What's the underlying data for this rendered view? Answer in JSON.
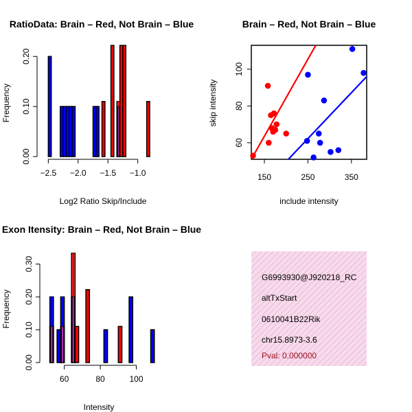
{
  "colors": {
    "red": "#ff0000",
    "blue": "#0000ff",
    "overlap": "#b02ab0",
    "info_bg": "#f7dbec",
    "info_hatch": "#eab8d6",
    "pval": "#9b1020"
  },
  "info_panel": {
    "lines": [
      "G6993930@J920218_RC",
      "altTxStart",
      "0610041B22Rik",
      "chr15.8973-3.6"
    ],
    "pval": "Pval: 0.000000"
  },
  "chart_data": [
    {
      "id": "ratio-hist",
      "type": "bar",
      "title": "RatioData: Brain – Red, Not Brain – Blue",
      "xlabel": "Log2 Ratio Skip/Include",
      "ylabel": "Frequency",
      "xlim": [
        -2.55,
        -0.8
      ],
      "ylim": [
        0,
        0.225
      ],
      "xticks": [
        -2.5,
        -2.0,
        -1.5,
        -1.0
      ],
      "xtick_labels": [
        "−2.5",
        "−2.0",
        "−1.5",
        "−1.0"
      ],
      "yticks": [
        0.0,
        0.1,
        0.2
      ],
      "ytick_labels": [
        "0.00",
        "0.10",
        "0.20"
      ],
      "series": [
        {
          "name": "Not Brain",
          "color": "blue",
          "bins": [
            [
              -2.5,
              0.2
            ],
            [
              -2.3,
              0.1
            ],
            [
              -2.25,
              0.1
            ],
            [
              -2.2,
              0.1
            ],
            [
              -2.15,
              0.1
            ],
            [
              -2.1,
              0.1
            ],
            [
              -1.75,
              0.1
            ],
            [
              -1.7,
              0.1
            ],
            [
              -1.35,
              0.1
            ]
          ]
        },
        {
          "name": "Brain",
          "color": "red",
          "bins": [
            [
              -1.6,
              0.11
            ],
            [
              -1.45,
              0.222
            ],
            [
              -1.35,
              0.11
            ],
            [
              -1.3,
              0.222
            ],
            [
              -1.25,
              0.222
            ],
            [
              -0.85,
              0.11
            ]
          ]
        }
      ]
    },
    {
      "id": "scatter",
      "type": "scatter",
      "title": "Brain – Red, Not Brain – Blue",
      "xlabel": "include intensity",
      "ylabel": "skip intensity",
      "xlim": [
        120,
        385
      ],
      "ylim": [
        51,
        113
      ],
      "xticks": [
        150,
        250,
        350
      ],
      "yticks": [
        60,
        80,
        100
      ],
      "series": [
        {
          "name": "Brain",
          "color": "red",
          "points": [
            [
              124,
              53
            ],
            [
              158,
              91
            ],
            [
              160,
              60
            ],
            [
              165,
              75
            ],
            [
              167,
              68
            ],
            [
              170,
              66
            ],
            [
              172,
              76
            ],
            [
              175,
              67
            ],
            [
              178,
              70
            ],
            [
              200,
              65
            ]
          ],
          "fit": [
            [
              120,
              51
            ],
            [
              268,
              113
            ]
          ]
        },
        {
          "name": "Not Brain",
          "color": "blue",
          "points": [
            [
              248,
              61
            ],
            [
              250,
              97
            ],
            [
              263,
              52
            ],
            [
              275,
              65
            ],
            [
              278,
              60
            ],
            [
              287,
              83
            ],
            [
              302,
              55
            ],
            [
              320,
              56
            ],
            [
              352,
              111
            ],
            [
              378,
              98
            ]
          ],
          "fit": [
            [
              205,
              51
            ],
            [
              385,
              96
            ]
          ]
        }
      ]
    },
    {
      "id": "intensity-hist",
      "type": "bar",
      "title": "Exon Itensity: Brain – Red, Not Brain – Blue",
      "xlabel": "Intensity",
      "ylabel": "Frequency",
      "xlim": [
        51,
        112
      ],
      "ylim": [
        0,
        0.345
      ],
      "xticks": [
        60,
        80,
        100
      ],
      "yticks": [
        0.0,
        0.1,
        0.2,
        0.3
      ],
      "ytick_labels": [
        "0.00",
        "0.10",
        "0.20",
        "0.30"
      ],
      "series": [
        {
          "name": "Not Brain",
          "color": "blue",
          "bins": [
            [
              52,
              0.2
            ],
            [
              56,
              0.1
            ],
            [
              58,
              0.2
            ],
            [
              64,
              0.2
            ],
            [
              82,
              0.1
            ],
            [
              96,
              0.2
            ],
            [
              108,
              0.1
            ]
          ]
        },
        {
          "name": "Brain",
          "color": "red",
          "bins": [
            [
              52,
              0.11
            ],
            [
              58,
              0.11
            ],
            [
              64,
              0.333
            ],
            [
              66,
              0.11
            ],
            [
              72,
              0.222
            ],
            [
              90,
              0.11
            ]
          ]
        }
      ]
    }
  ]
}
